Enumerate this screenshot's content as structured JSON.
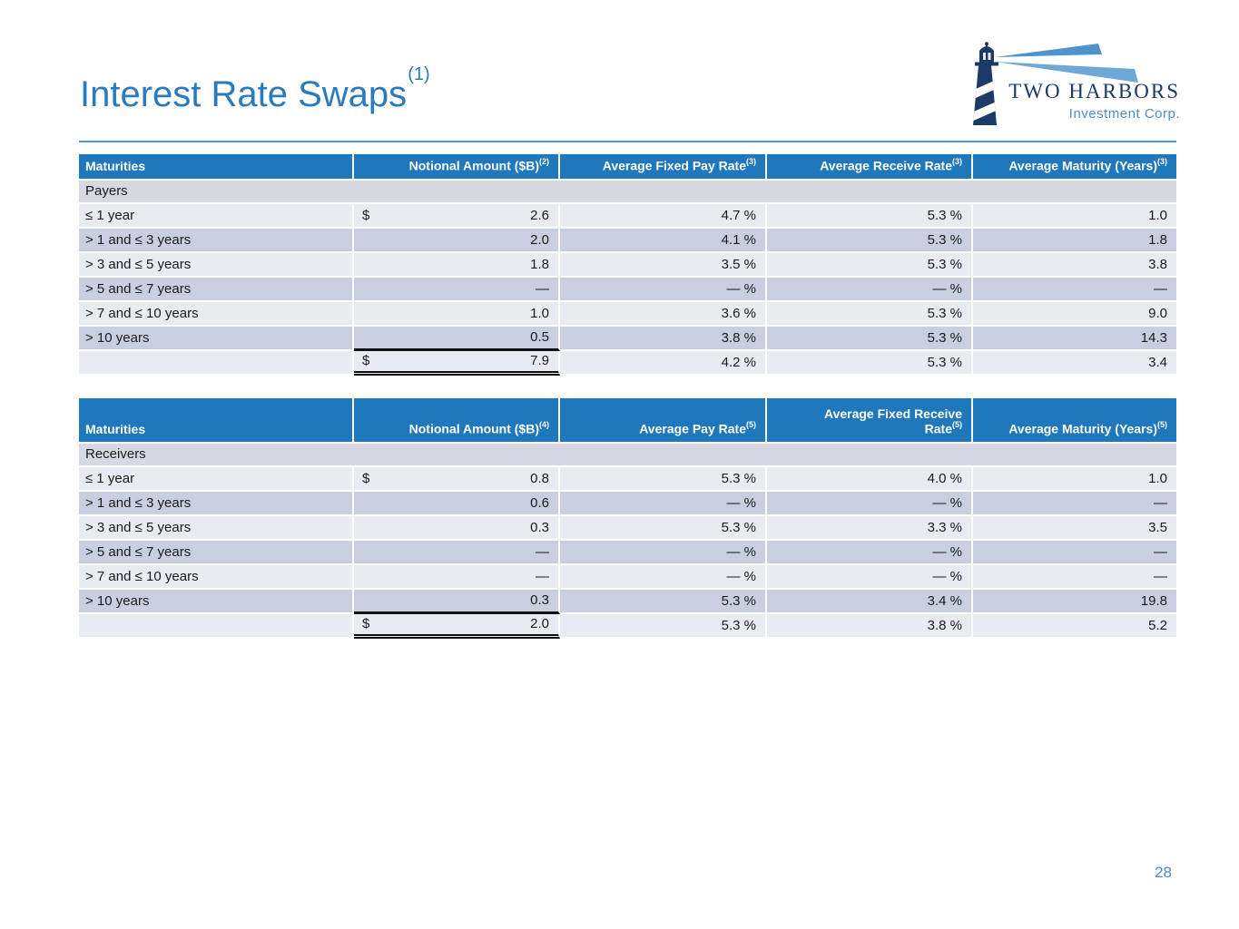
{
  "page": {
    "title": "Interest Rate Swaps",
    "title_sup": "(1)",
    "page_number": "28"
  },
  "logo": {
    "icon": "lighthouse-icon",
    "name": "TWO HARBORS",
    "subtitle": "Investment Corp."
  },
  "colors": {
    "title_blue": "#2A7ABF",
    "rule_blue": "#4D9BD5",
    "header_bg": "#1F77BC",
    "row_light": "#E9EBF3",
    "row_dark": "#C9CFE1",
    "section_bg": "#D6D9E3",
    "text_dark": "#1A1A1A",
    "navy": "#1B3A66",
    "beam_blue": "#5B9BD5",
    "page_number_blue": "#5585C2"
  },
  "tables": [
    {
      "section_label": "Payers",
      "columns": [
        {
          "label": "Maturities",
          "sup": ""
        },
        {
          "label": "Notional Amount ($B)",
          "sup": "(2)"
        },
        {
          "label": "Average Fixed Pay Rate",
          "sup": "(3)"
        },
        {
          "label": "Average Receive Rate",
          "sup": "(3)"
        },
        {
          "label": "Average Maturity (Years)",
          "sup": "(3)"
        }
      ],
      "rows": [
        {
          "cells": [
            "≤ 1 year",
            "2.6",
            "4.7 %",
            "5.3 %",
            "1.0"
          ],
          "dollar": true
        },
        {
          "cells": [
            "> 1 and ≤ 3 years",
            "2.0",
            "4.1 %",
            "5.3 %",
            "1.8"
          ]
        },
        {
          "cells": [
            "> 3 and ≤ 5 years",
            "1.8",
            "3.5 %",
            "5.3 %",
            "3.8"
          ]
        },
        {
          "cells": [
            "> 5 and ≤ 7 years",
            "—",
            "— %",
            "— %",
            "—"
          ]
        },
        {
          "cells": [
            "> 7 and ≤ 10 years",
            "1.0",
            "3.6 %",
            "5.3 %",
            "9.0"
          ]
        },
        {
          "cells": [
            "> 10 years",
            "0.5",
            "3.8 %",
            "5.3 %",
            "14.3"
          ],
          "underline": true
        }
      ],
      "total_row": {
        "cells": [
          "",
          "7.9",
          "4.2 %",
          "5.3 %",
          "3.4"
        ],
        "dollar": true,
        "double_underline": true
      }
    },
    {
      "section_label": "Receivers",
      "columns": [
        {
          "label": "Maturities",
          "sup": ""
        },
        {
          "label": "Notional Amount ($B)",
          "sup": "(4)"
        },
        {
          "label": "Average Pay Rate",
          "sup": "(5)"
        },
        {
          "label": "Average Fixed Receive\nRate",
          "sup": "(5)"
        },
        {
          "label": "Average Maturity (Years)",
          "sup": "(5)"
        }
      ],
      "rows": [
        {
          "cells": [
            "≤ 1 year",
            "0.8",
            "5.3 %",
            "4.0 %",
            "1.0"
          ],
          "dollar": true
        },
        {
          "cells": [
            "> 1 and ≤ 3 years",
            "0.6",
            "— %",
            "— %",
            "—"
          ]
        },
        {
          "cells": [
            "> 3 and ≤ 5 years",
            "0.3",
            "5.3 %",
            "3.3 %",
            "3.5"
          ]
        },
        {
          "cells": [
            "> 5 and ≤ 7 years",
            "—",
            "— %",
            "— %",
            "—"
          ]
        },
        {
          "cells": [
            "> 7 and ≤ 10 years",
            "—",
            "— %",
            "— %",
            "—"
          ]
        },
        {
          "cells": [
            "> 10 years",
            "0.3",
            "5.3 %",
            "3.4 %",
            "19.8"
          ],
          "underline": true
        }
      ],
      "total_row": {
        "cells": [
          "",
          "2.0",
          "5.3 %",
          "3.8 %",
          "5.2"
        ],
        "dollar": true,
        "double_underline": true
      }
    }
  ]
}
